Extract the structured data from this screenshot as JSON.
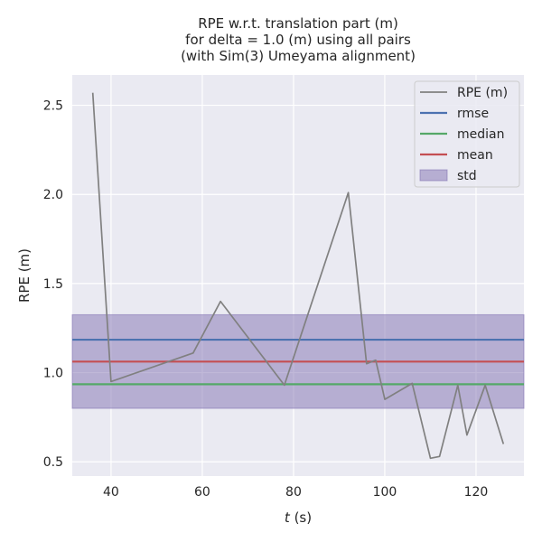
{
  "chart_data": {
    "type": "line",
    "title_lines": [
      "RPE w.r.t. translation part (m)",
      "for delta = 1.0 (m) using all pairs",
      "(with Sim(3) Umeyama alignment)"
    ],
    "xlabel_var": "t",
    "xlabel_unit": " (s)",
    "ylabel": "RPE (m)",
    "xlim": [
      31.5,
      130.5
    ],
    "ylim": [
      0.42,
      2.67
    ],
    "xticks": [
      40,
      60,
      80,
      100,
      120
    ],
    "yticks": [
      0.5,
      1.0,
      1.5,
      2.0,
      2.5
    ],
    "xtick_labels": [
      "40",
      "60",
      "80",
      "100",
      "120"
    ],
    "ytick_labels": [
      "0.5",
      "1.0",
      "1.5",
      "2.0",
      "2.5"
    ],
    "grid": true,
    "legend_position": "top-right",
    "series": [
      {
        "name": "RPE (m)",
        "color": "#808080",
        "x": [
          36,
          40,
          58,
          64,
          78,
          92,
          96,
          98,
          100,
          106,
          110,
          112,
          116,
          118,
          122,
          126
        ],
        "y": [
          2.57,
          0.95,
          1.11,
          1.4,
          0.93,
          2.01,
          1.05,
          1.07,
          0.85,
          0.94,
          0.52,
          0.53,
          0.93,
          0.65,
          0.93,
          0.6
        ]
      }
    ],
    "stats": {
      "rmse": {
        "name": "rmse",
        "value": 1.185,
        "color": "#4c72b0"
      },
      "median": {
        "name": "median",
        "value": 0.935,
        "color": "#55a868"
      },
      "mean": {
        "name": "mean",
        "value": 1.062,
        "color": "#c44e52"
      },
      "std": {
        "name": "std",
        "low": 0.8,
        "high": 1.325,
        "color": "#8172b2"
      }
    },
    "colors": {
      "plot_background": "#eaeaf2",
      "grid": "#ffffff",
      "text": "#262626"
    }
  }
}
